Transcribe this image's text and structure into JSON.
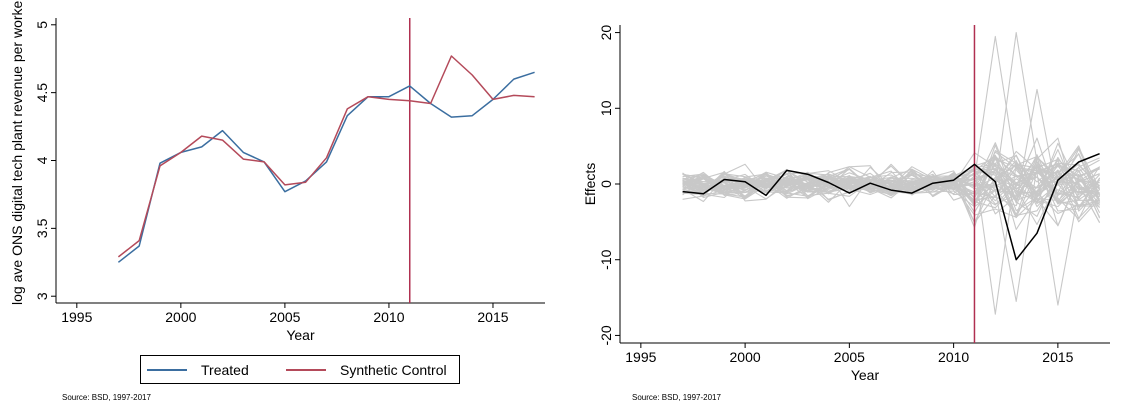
{
  "chart_data": [
    {
      "type": "line",
      "title": "",
      "xlabel": "Year",
      "ylabel": "log ave ONS digital tech plant revenue per worker",
      "xlim": [
        1994,
        2017.5
      ],
      "ylim": [
        2.95,
        5.05
      ],
      "xticks": [
        1995,
        2000,
        2005,
        2010,
        2015
      ],
      "xtick_labels": [
        "1995",
        "2000",
        "2005",
        "2010",
        "2015"
      ],
      "yticks": [
        3,
        3.5,
        4,
        4.5,
        5
      ],
      "ytick_labels": [
        "3",
        "3.5",
        "4",
        "4.5",
        "5"
      ],
      "vline_x": 2011,
      "x": [
        1997,
        1998,
        1999,
        2000,
        2001,
        2002,
        2003,
        2004,
        2005,
        2006,
        2007,
        2008,
        2009,
        2010,
        2011,
        2012,
        2013,
        2014,
        2015,
        2016,
        2017
      ],
      "series": [
        {
          "name": "Treated",
          "color": "#3b6ea0",
          "values": [
            3.25,
            3.37,
            3.98,
            4.06,
            4.1,
            4.22,
            4.06,
            3.99,
            3.77,
            3.85,
            3.99,
            4.33,
            4.47,
            4.47,
            4.55,
            4.42,
            4.32,
            4.33,
            4.45,
            4.6,
            4.65
          ]
        },
        {
          "name": "Synthetic Control",
          "color": "#b44a5a",
          "values": [
            3.29,
            3.41,
            3.96,
            4.06,
            4.18,
            4.15,
            4.01,
            3.99,
            3.82,
            3.84,
            4.02,
            4.38,
            4.47,
            4.45,
            4.44,
            4.42,
            4.77,
            4.63,
            4.45,
            4.48,
            4.47
          ]
        }
      ],
      "legend": "bottom",
      "grid": false,
      "source": "Source: BSD, 1997-2017"
    },
    {
      "type": "line",
      "title": "",
      "xlabel": "Year",
      "ylabel": "Effects",
      "xlim": [
        1994,
        2017.5
      ],
      "ylim": [
        -21,
        21
      ],
      "xticks": [
        1995,
        2000,
        2005,
        2010,
        2015
      ],
      "xtick_labels": [
        "1995",
        "2000",
        "2005",
        "2010",
        "2015"
      ],
      "yticks": [
        -20,
        -10,
        0,
        10,
        20
      ],
      "ytick_labels": [
        "-20",
        "-10",
        "0",
        "10",
        "20"
      ],
      "vline_x": 2011,
      "x": [
        1997,
        1998,
        1999,
        2000,
        2001,
        2002,
        2003,
        2004,
        2005,
        2006,
        2007,
        2008,
        2009,
        2010,
        2011,
        2012,
        2013,
        2014,
        2015,
        2016,
        2017
      ],
      "treated": {
        "color": "#000000",
        "values": [
          -1.0,
          -1.3,
          0.6,
          0.3,
          -1.5,
          1.8,
          1.3,
          0.2,
          -1.2,
          0.1,
          -0.8,
          -1.2,
          0.1,
          0.5,
          2.6,
          0.3,
          -10.0,
          -6.5,
          0.5,
          2.9,
          4.0
        ]
      },
      "placebo_color": "#c8c8c8",
      "placebo_count": 50,
      "placebo_pre_spread": 1.6,
      "placebo_post_spread": 4.0,
      "placebo_post_extremes": [
        19.5,
        20.0,
        12.5,
        -16.0,
        -17.2,
        -15.5
      ],
      "grid": false,
      "source": "Source: BSD, 1997-2017"
    }
  ]
}
